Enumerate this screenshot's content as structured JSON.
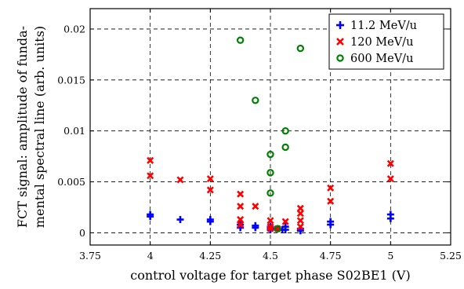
{
  "chart_data": {
    "type": "scatter",
    "xlabel": "control voltage for target phase S02BE1 (V)",
    "ylabel_lines": [
      "FCT signal: amplitude of funda-",
      "mental spectral line (arb. units)"
    ],
    "xlim": [
      3.75,
      5.25
    ],
    "ylim": [
      -0.0012,
      0.022
    ],
    "xticks": [
      3.75,
      4,
      4.25,
      4.5,
      4.75,
      5,
      5.25
    ],
    "xtick_labels": [
      "3.75",
      "4",
      "4.25",
      "4.5",
      "4.75",
      "5",
      "5.25"
    ],
    "yticks": [
      0,
      0.005,
      0.01,
      0.015,
      0.02
    ],
    "ytick_labels": [
      "0",
      "0.005",
      "0.01",
      "0.015",
      "0.02"
    ],
    "grid": true,
    "legend_position": "top-right",
    "series": [
      {
        "name": "11.2 MeV/u",
        "marker": "plus",
        "color": "#0000ff",
        "points": [
          [
            4.0,
            0.0018
          ],
          [
            4.0,
            0.0016
          ],
          [
            4.125,
            0.0013
          ],
          [
            4.25,
            0.0013
          ],
          [
            4.25,
            0.0011
          ],
          [
            4.375,
            0.0008
          ],
          [
            4.375,
            0.0005
          ],
          [
            4.4375,
            0.0007
          ],
          [
            4.4375,
            0.0005
          ],
          [
            4.5,
            0.0006
          ],
          [
            4.5,
            0.0004
          ],
          [
            4.5,
            0.0003
          ],
          [
            4.53,
            0.0004
          ],
          [
            4.55,
            0.0003
          ],
          [
            4.5625,
            0.0006
          ],
          [
            4.5625,
            0.0003
          ],
          [
            4.625,
            0.0004
          ],
          [
            4.625,
            0.0002
          ],
          [
            4.75,
            0.0011
          ],
          [
            4.75,
            0.0008
          ],
          [
            5.0,
            0.0018
          ],
          [
            5.0,
            0.0014
          ]
        ]
      },
      {
        "name": "120 MeV/u",
        "marker": "cross",
        "color": "#ff0000",
        "points": [
          [
            4.0,
            0.0071
          ],
          [
            4.0,
            0.0056
          ],
          [
            4.125,
            0.0052
          ],
          [
            4.25,
            0.0053
          ],
          [
            4.25,
            0.0042
          ],
          [
            4.375,
            0.0038
          ],
          [
            4.375,
            0.0026
          ],
          [
            4.375,
            0.0013
          ],
          [
            4.375,
            0.0008
          ],
          [
            4.4375,
            0.0026
          ],
          [
            4.5,
            0.0012
          ],
          [
            4.5,
            0.0006
          ],
          [
            4.5,
            0.0004
          ],
          [
            4.53,
            0.0004
          ],
          [
            4.5625,
            0.0011
          ],
          [
            4.625,
            0.0024
          ],
          [
            4.625,
            0.0019
          ],
          [
            4.625,
            0.0012
          ],
          [
            4.625,
            0.0006
          ],
          [
            4.75,
            0.0044
          ],
          [
            4.75,
            0.0031
          ],
          [
            5.0,
            0.0068
          ],
          [
            5.0,
            0.0053
          ]
        ]
      },
      {
        "name": "600 MeV/u",
        "marker": "circle",
        "color": "#008000",
        "points": [
          [
            4.375,
            0.0189
          ],
          [
            4.4375,
            0.013
          ],
          [
            4.5,
            0.0077
          ],
          [
            4.5,
            0.0059
          ],
          [
            4.5,
            0.0039
          ],
          [
            4.53,
            0.0004
          ],
          [
            4.5625,
            0.01
          ],
          [
            4.5625,
            0.0084
          ],
          [
            4.625,
            0.0181
          ]
        ]
      }
    ]
  },
  "legend": {
    "items": [
      {
        "label": "11.2 MeV/u",
        "marker": "plus",
        "color": "#0000ff"
      },
      {
        "label": "120 MeV/u",
        "marker": "cross",
        "color": "#ff0000"
      },
      {
        "label": "600 MeV/u",
        "marker": "circle",
        "color": "#008000"
      }
    ]
  }
}
